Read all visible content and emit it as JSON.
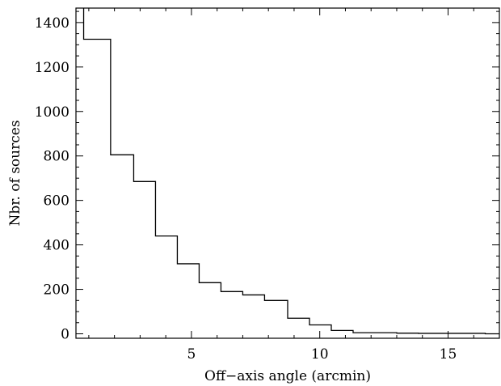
{
  "chart_data": {
    "type": "histogram",
    "title": "",
    "xlabel": "Off−axis angle (arcmin)",
    "ylabel": "Nbr. of sources",
    "xlim": [
      0.5,
      17.0
    ],
    "ylim": [
      -20,
      1465
    ],
    "x_ticks": [
      5,
      10,
      15
    ],
    "x_tick_labels": [
      "5",
      "10",
      "15"
    ],
    "y_ticks": [
      0,
      200,
      400,
      600,
      800,
      1000,
      1200,
      1400
    ],
    "y_tick_labels": [
      "0",
      "200",
      "400",
      "600",
      "800",
      "1000",
      "1200",
      "1400"
    ],
    "bin_edges": [
      0.8,
      1.85,
      2.75,
      3.6,
      4.45,
      5.3,
      6.15,
      7.0,
      7.85,
      8.75,
      9.6,
      10.45,
      11.3,
      12.15,
      13.0,
      13.85,
      14.75,
      15.6,
      16.45,
      17.0
    ],
    "counts": [
      1325,
      805,
      685,
      440,
      315,
      230,
      190,
      175,
      150,
      70,
      40,
      15,
      5,
      5,
      3,
      2,
      2,
      2,
      0
    ],
    "grid": false,
    "legend": "none"
  }
}
